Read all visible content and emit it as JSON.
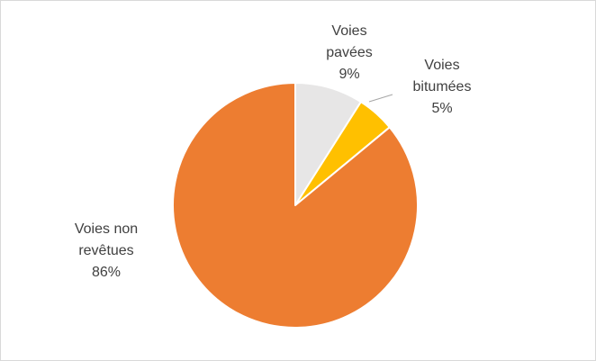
{
  "chart_data": {
    "type": "pie",
    "title": "",
    "legend": "none",
    "start_angle_deg": 0,
    "direction": "clockwise",
    "slices": [
      {
        "label_lines": [
          "Voies",
          "pavées"
        ],
        "value_text": "9%",
        "value": 9,
        "color": "#E7E6E6"
      },
      {
        "label_lines": [
          "Voies",
          "bitumées"
        ],
        "value_text": "5%",
        "value": 5,
        "color": "#FFC000"
      },
      {
        "label_lines": [
          "Voies non",
          "revêtues"
        ],
        "value_text": "86%",
        "value": 86,
        "color": "#ED7D31"
      }
    ]
  }
}
